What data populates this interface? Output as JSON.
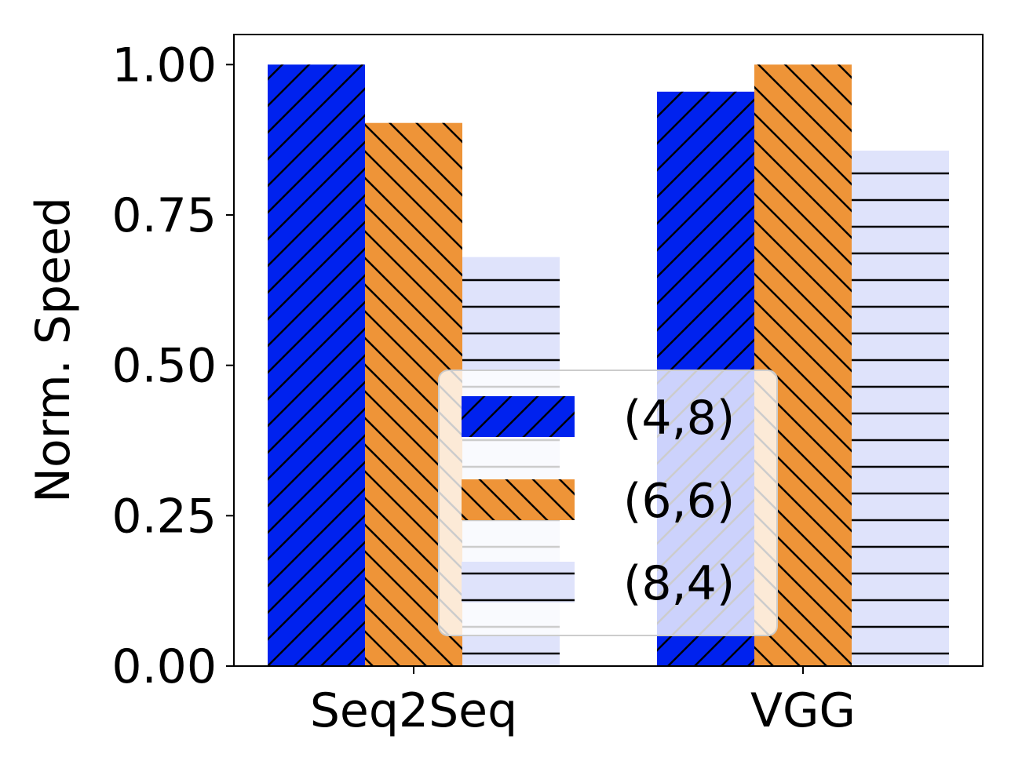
{
  "chart_data": {
    "type": "bar",
    "categories": [
      "Seq2Seq",
      "VGG"
    ],
    "series": [
      {
        "name": "(4,8)",
        "values": [
          1.0,
          0.955
        ],
        "color": "#0022ee",
        "hatch": "diagonal-up"
      },
      {
        "name": "(6,6)",
        "values": [
          0.903,
          1.0
        ],
        "color": "#ee9438",
        "hatch": "diagonal-down"
      },
      {
        "name": "(8,4)",
        "values": [
          0.68,
          0.857
        ],
        "color": "#dfe3fb",
        "hatch": "horizontal"
      }
    ],
    "xlabel": "",
    "ylabel": "Norm. Speed",
    "ylim": [
      0,
      1.05
    ],
    "yticks": [
      0.0,
      0.25,
      0.5,
      0.75,
      1.0
    ],
    "ytick_labels": [
      "0.00",
      "0.25",
      "0.50",
      "0.75",
      "1.00"
    ],
    "grid": false,
    "legend_position": "lower-center"
  }
}
